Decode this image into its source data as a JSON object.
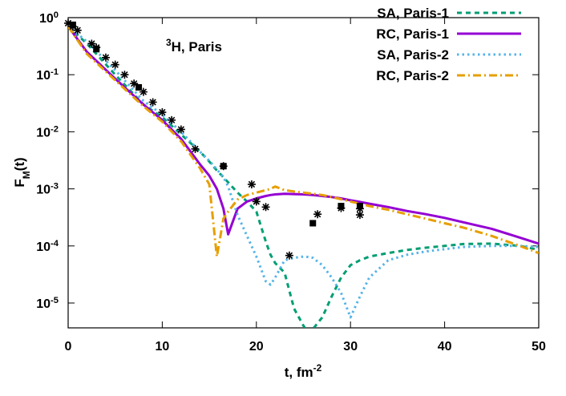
{
  "chart_data": {
    "type": "line",
    "annotation": "^3H, Paris",
    "x_label": "t, fm^-2",
    "y_label": "F_M(t)",
    "log_y": true,
    "legend": "top-right",
    "xlim": [
      0,
      50
    ],
    "ylim": [
      3.67e-06,
      1
    ],
    "xticks": [
      0,
      10,
      20,
      30,
      40,
      50
    ],
    "yticks": [
      {
        "value": 1,
        "label": "10^0"
      },
      {
        "value": 0.1,
        "label": "10^-1"
      },
      {
        "value": 0.01,
        "label": "10^-2"
      },
      {
        "value": 0.001,
        "label": "10^-3"
      },
      {
        "value": 0.0001,
        "label": "10^-4"
      },
      {
        "value": 1e-05,
        "label": "10^-5"
      }
    ],
    "x": [
      0,
      2,
      5,
      8,
      10,
      12,
      14,
      15,
      15.8,
      16.5,
      17,
      18,
      19,
      20,
      21,
      21.5,
      22,
      23,
      24,
      25,
      25.5,
      26,
      27,
      28,
      29,
      30,
      31,
      32,
      34,
      36,
      38,
      40,
      42,
      45,
      48,
      50
    ],
    "series": [
      {
        "name": "SA, Paris-1",
        "color": "#009e73",
        "dash": "6 5",
        "values": [
          0.7,
          0.35,
          0.1,
          0.03,
          0.018,
          0.009,
          0.0045,
          0.003,
          0.0021,
          0.0016,
          0.0013,
          0.00086,
          0.0006,
          0.0004,
          0.00012,
          7e-05,
          5e-05,
          3.4e-05,
          8e-06,
          4e-06,
          3e-06,
          3.5e-06,
          5.6e-06,
          1.3e-05,
          2.8e-05,
          4.6e-05,
          5.6e-05,
          6.5e-05,
          7.5e-05,
          8.5e-05,
          9.3e-05,
          0.0001,
          0.000108,
          0.00011,
          0.0001,
          8.6e-05
        ]
      },
      {
        "name": "RC, Paris-1",
        "color": "#9400d3",
        "dash": "",
        "values": [
          0.7,
          0.25,
          0.085,
          0.03,
          0.016,
          0.0075,
          0.0027,
          0.0017,
          0.001,
          0.00045,
          0.00016,
          0.00045,
          0.0006,
          0.00068,
          0.00075,
          0.00078,
          0.0008,
          0.00082,
          0.00081,
          0.0008,
          0.00079,
          0.00078,
          0.00075,
          0.00072,
          0.00068,
          0.00063,
          0.00059,
          0.00055,
          0.00048,
          0.00041,
          0.00036,
          0.00031,
          0.00026,
          0.0002,
          0.00014,
          0.00011
        ]
      },
      {
        "name": "SA, Paris-2",
        "color": "#56b4e9",
        "dash": "2.5 4",
        "values": [
          0.7,
          0.38,
          0.12,
          0.035,
          0.02,
          0.01,
          0.0045,
          0.0031,
          0.0022,
          0.0016,
          0.0011,
          0.00035,
          0.00015,
          6.5e-05,
          2.4e-05,
          2.1e-05,
          2.8e-05,
          5.6e-05,
          6.2e-05,
          6.5e-05,
          6.4e-05,
          6.2e-05,
          4.6e-05,
          2.8e-05,
          1.5e-05,
          5.6e-06,
          1.3e-05,
          2.8e-05,
          5.6e-05,
          7e-05,
          8e-05,
          8.8e-05,
          9.6e-05,
          0.0001,
          0.0001,
          9.6e-05
        ]
      },
      {
        "name": "RC, Paris-2",
        "color": "#e69f00",
        "dash": "10 4 2 4",
        "values": [
          0.7,
          0.23,
          0.08,
          0.028,
          0.015,
          0.0068,
          0.0023,
          0.0012,
          6.5e-05,
          0.0003,
          0.0004,
          0.00065,
          0.00078,
          0.00086,
          0.00095,
          0.001,
          0.0011,
          0.00095,
          0.0009,
          0.00086,
          0.00084,
          0.00082,
          0.00078,
          0.00072,
          0.00066,
          0.0006,
          0.00055,
          0.0005,
          0.00043,
          0.00036,
          0.0003,
          0.00025,
          0.00021,
          0.00015,
          0.0001,
          7.5e-05
        ]
      }
    ],
    "points": [
      {
        "marker": "star",
        "x": [
          0,
          0.5,
          1,
          2.5,
          3,
          4,
          5,
          6,
          7,
          8,
          9,
          10,
          11,
          12,
          13.5,
          16.5,
          19.5,
          20,
          21,
          23.5,
          26.5,
          29,
          31,
          31
        ],
        "values": [
          0.8,
          0.7,
          0.6,
          0.35,
          0.3,
          0.2,
          0.15,
          0.1,
          0.07,
          0.05,
          0.033,
          0.022,
          0.016,
          0.011,
          0.005,
          0.0025,
          0.0012,
          0.0006,
          0.00048,
          6.8e-05,
          0.00036,
          0.00046,
          0.00045,
          0.00035
        ]
      },
      {
        "marker": "square",
        "x": [
          0.5,
          3,
          7.5,
          16.5,
          26,
          29,
          31
        ],
        "values": [
          0.75,
          0.28,
          0.06,
          0.0025,
          0.00025,
          0.0005,
          0.0005
        ]
      }
    ]
  }
}
